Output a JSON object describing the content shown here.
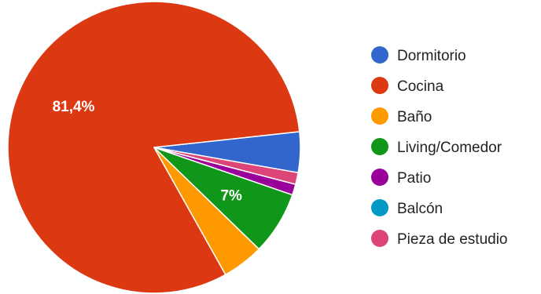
{
  "chart_data": {
    "type": "pie",
    "slices": [
      {
        "label": "Dormitorio",
        "value": 4.5,
        "color": "#3366cc",
        "show_label": false
      },
      {
        "label": "Cocina",
        "value": 81.4,
        "display": "81,4%",
        "color": "#dc3912",
        "show_label": true
      },
      {
        "label": "Baño",
        "value": 4.6,
        "color": "#ff9900",
        "show_label": false
      },
      {
        "label": "Living/Comedor",
        "value": 7,
        "display": "7%",
        "color": "#109618",
        "show_label": true
      },
      {
        "label": "Patio",
        "value": 1.2,
        "color": "#990099",
        "show_label": false
      },
      {
        "label": "Balcón",
        "value": 0,
        "color": "#0099c6",
        "show_label": false
      },
      {
        "label": "Pieza de estudio",
        "value": 1.3,
        "color": "#dd4477",
        "show_label": false
      }
    ],
    "legend_position": "right"
  }
}
